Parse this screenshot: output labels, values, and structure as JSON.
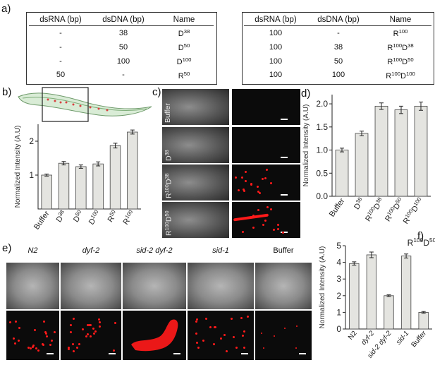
{
  "panel_labels": {
    "a": "a)",
    "b": "b)",
    "c": "c)",
    "d": "d)",
    "e": "e)",
    "f": "f)"
  },
  "table_left": {
    "headers": [
      "dsRNA (bp)",
      "dsDNA (bp)",
      "Name"
    ],
    "rows": [
      {
        "rna": "-",
        "dna": "38",
        "name": "D",
        "sup": "38"
      },
      {
        "rna": "-",
        "dna": "50",
        "name": "D",
        "sup": "50"
      },
      {
        "rna": "-",
        "dna": "100",
        "name": "D",
        "sup": "100"
      },
      {
        "rna": "50",
        "dna": "-",
        "name": "R",
        "sup": "50"
      }
    ]
  },
  "table_right": {
    "headers": [
      "dsRNA (bp)",
      "dsDNA (bp)",
      "Name"
    ],
    "rows": [
      {
        "rna": "100",
        "dna": "-",
        "name": [
          {
            "t": "R"
          },
          {
            "t": "100",
            "sup": true
          }
        ]
      },
      {
        "rna": "100",
        "dna": "38",
        "name": [
          {
            "t": "R"
          },
          {
            "t": "100",
            "sup": true
          },
          {
            "t": "D"
          },
          {
            "t": "38",
            "sup": true
          }
        ]
      },
      {
        "rna": "100",
        "dna": "50",
        "name": [
          {
            "t": "R"
          },
          {
            "t": "100",
            "sup": true
          },
          {
            "t": "D"
          },
          {
            "t": "50",
            "sup": true
          }
        ]
      },
      {
        "rna": "100",
        "dna": "100",
        "name": [
          {
            "t": "R"
          },
          {
            "t": "100",
            "sup": true
          },
          {
            "t": "D"
          },
          {
            "t": "100",
            "sup": true
          }
        ]
      }
    ]
  },
  "panel_c": {
    "rows": [
      {
        "label": [
          {
            "t": "Buffer"
          }
        ]
      },
      {
        "label": [
          {
            "t": "D"
          },
          {
            "t": "38",
            "sup": true
          }
        ]
      },
      {
        "label": [
          {
            "t": "R"
          },
          {
            "t": "100",
            "sup": true
          },
          {
            "t": "D"
          },
          {
            "t": "38",
            "sup": true
          }
        ]
      },
      {
        "label": [
          {
            "t": "R"
          },
          {
            "t": "100",
            "sup": true
          },
          {
            "t": "D"
          },
          {
            "t": "50",
            "sup": true
          }
        ]
      }
    ]
  },
  "panel_e": {
    "columns": [
      "N2",
      "dyf-2",
      "sid-2 dyf-2",
      "sid-1",
      "Buffer"
    ]
  },
  "colors": {
    "bar_fill": "#e4e4e0",
    "bar_edge": "#444444",
    "fluor": "#ff1a1a"
  },
  "chart_data": [
    {
      "panel": "b",
      "type": "bar",
      "categories": [
        [
          {
            "t": "Buffer"
          }
        ],
        [
          {
            "t": "D"
          },
          {
            "t": "38",
            "sup": true
          }
        ],
        [
          {
            "t": "D"
          },
          {
            "t": "50",
            "sup": true
          }
        ],
        [
          {
            "t": "D"
          },
          {
            "t": "100",
            "sup": true
          }
        ],
        [
          {
            "t": "R"
          },
          {
            "t": "50",
            "sup": true
          }
        ],
        [
          {
            "t": "R"
          },
          {
            "t": "100",
            "sup": true
          }
        ]
      ],
      "values": [
        1.0,
        1.35,
        1.25,
        1.33,
        1.87,
        2.27
      ],
      "errors": [
        0.03,
        0.05,
        0.05,
        0.06,
        0.07,
        0.06
      ],
      "ylabel": "Normalized  Intensity   (A.U)",
      "ylim": [
        0,
        2.5
      ],
      "yticks": [
        1,
        2
      ]
    },
    {
      "panel": "d",
      "type": "bar",
      "categories": [
        [
          {
            "t": "Buffer"
          }
        ],
        [
          {
            "t": "D"
          },
          {
            "t": "38",
            "sup": true
          }
        ],
        [
          {
            "t": "R"
          },
          {
            "t": "100",
            "sup": true
          },
          {
            "t": "D"
          },
          {
            "t": "38",
            "sup": true
          }
        ],
        [
          {
            "t": "R"
          },
          {
            "t": "100",
            "sup": true
          },
          {
            "t": "D"
          },
          {
            "t": "50",
            "sup": true
          }
        ],
        [
          {
            "t": "R"
          },
          {
            "t": "100",
            "sup": true
          },
          {
            "t": "D"
          },
          {
            "t": "100",
            "sup": true
          }
        ]
      ],
      "values": [
        1.0,
        1.36,
        1.95,
        1.87,
        1.95
      ],
      "errors": [
        0.04,
        0.05,
        0.07,
        0.08,
        0.09
      ],
      "ylabel": "Normalized  Intensity   (A.U)",
      "ylim": [
        0,
        2.2
      ],
      "yticks": [
        0.0,
        0.5,
        1.0,
        1.5,
        2.0
      ]
    },
    {
      "panel": "f",
      "type": "bar",
      "title": [
        {
          "t": "R"
        },
        {
          "t": "100",
          "sup": true
        },
        {
          "t": "D"
        },
        {
          "t": "50",
          "sup": true
        }
      ],
      "categories": [
        [
          {
            "t": "N2"
          }
        ],
        [
          {
            "t": "dyf-2",
            "it": true
          }
        ],
        [
          {
            "t": "sid-2 dyf-2",
            "it": true
          }
        ],
        [
          {
            "t": "sid-1",
            "it": true
          }
        ],
        [
          {
            "t": "Buffer"
          }
        ]
      ],
      "values": [
        3.93,
        4.45,
        2.0,
        4.38,
        1.0
      ],
      "errors": [
        0.1,
        0.17,
        0.05,
        0.12,
        0.05
      ],
      "ylabel": "Normalized  Intensity   (A.U)",
      "ylim": [
        0,
        5
      ],
      "yticks": [
        0,
        1,
        2,
        3,
        4,
        5
      ]
    }
  ]
}
